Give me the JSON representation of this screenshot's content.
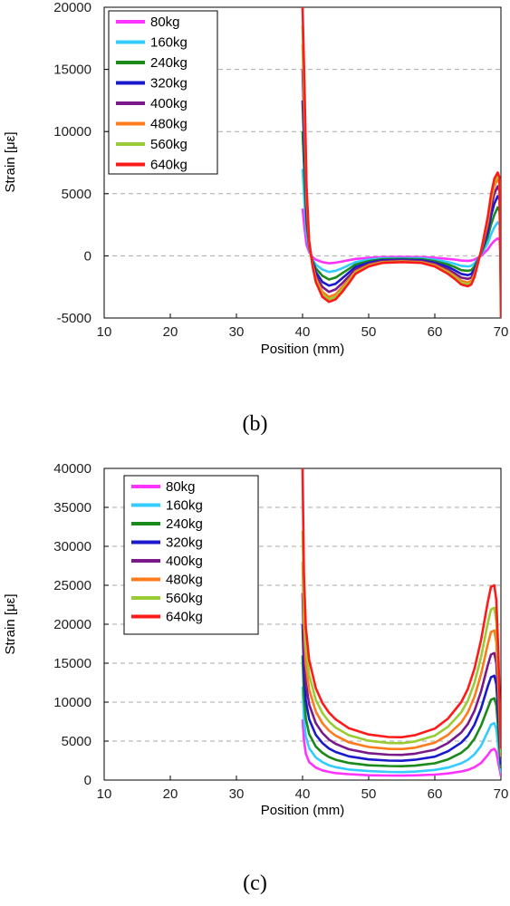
{
  "captions": {
    "b": "(b)",
    "c": "(c)"
  },
  "colors": {
    "80kg": "#ff33ff",
    "160kg": "#33ccff",
    "240kg": "#1a8a1a",
    "320kg": "#1a1acc",
    "400kg": "#7a1a8a",
    "480kg": "#ff7a1a",
    "560kg": "#99cc33",
    "640kg": "#ff1a1a"
  },
  "chart_data": [
    {
      "type": "line",
      "panel": "(b)",
      "xlabel": "Position (mm)",
      "ylabel": "Strain [με]",
      "xlim": [
        10,
        70
      ],
      "ylim": [
        -5000,
        20000
      ],
      "xticks": [
        "10",
        "20",
        "30",
        "40",
        "50",
        "60",
        "70"
      ],
      "yticks": [
        "-5000",
        "0",
        "5000",
        "10000",
        "15000",
        "20000"
      ],
      "grid": "horizontal dashed",
      "legend_position": "top-left",
      "x": [
        40,
        40.3,
        40.6,
        41,
        41.5,
        42,
        43,
        44,
        45,
        46,
        47,
        48,
        50,
        52,
        55,
        58,
        60,
        62,
        63,
        64,
        65,
        65.5,
        66,
        67,
        68,
        68.5,
        69,
        69.5,
        69.8,
        70
      ],
      "series": [
        {
          "name": "80kg",
          "values": [
            3800,
            2200,
            900,
            300,
            -100,
            -300,
            -500,
            -600,
            -550,
            -450,
            -350,
            -250,
            -150,
            -100,
            -80,
            -100,
            -150,
            -250,
            -300,
            -380,
            -400,
            -380,
            -300,
            0,
            500,
            900,
            1200,
            1400,
            1300,
            -400
          ]
        },
        {
          "name": "160kg",
          "values": [
            7000,
            4200,
            1800,
            500,
            -300,
            -700,
            -1100,
            -1300,
            -1200,
            -1000,
            -750,
            -500,
            -300,
            -200,
            -180,
            -200,
            -300,
            -500,
            -650,
            -800,
            -850,
            -800,
            -600,
            100,
            1000,
            1700,
            2300,
            2700,
            2500,
            -900
          ]
        },
        {
          "name": "240kg",
          "values": [
            10000,
            6200,
            2600,
            700,
            -400,
            -1000,
            -1600,
            -1900,
            -1750,
            -1400,
            -1050,
            -700,
            -420,
            -280,
            -250,
            -280,
            -420,
            -700,
            -900,
            -1150,
            -1200,
            -1150,
            -850,
            200,
            1500,
            2500,
            3300,
            3900,
            3600,
            -1500
          ]
        },
        {
          "name": "320kg",
          "values": [
            12500,
            8000,
            3300,
            800,
            -500,
            -1300,
            -2100,
            -2400,
            -2250,
            -1800,
            -1350,
            -900,
            -550,
            -360,
            -320,
            -360,
            -550,
            -900,
            -1150,
            -1450,
            -1550,
            -1450,
            -1100,
            250,
            1900,
            3200,
            4200,
            4800,
            4500,
            -2200
          ]
        },
        {
          "name": "400kg",
          "values": [
            15000,
            9500,
            4000,
            900,
            -600,
            -1600,
            -2500,
            -2900,
            -2700,
            -2200,
            -1650,
            -1100,
            -650,
            -430,
            -380,
            -430,
            -650,
            -1100,
            -1400,
            -1750,
            -1850,
            -1750,
            -1300,
            300,
            2300,
            3800,
            5000,
            5600,
            5200,
            -2800
          ]
        },
        {
          "name": "480kg",
          "values": [
            17000,
            11000,
            4600,
            1000,
            -700,
            -1800,
            -2900,
            -3300,
            -3100,
            -2500,
            -1900,
            -1250,
            -750,
            -500,
            -440,
            -500,
            -750,
            -1250,
            -1600,
            -2000,
            -2150,
            -2000,
            -1500,
            350,
            2700,
            4300,
            5600,
            6200,
            5800,
            -3500
          ]
        },
        {
          "name": "560kg",
          "values": [
            18500,
            12200,
            5100,
            1100,
            -750,
            -1950,
            -3100,
            -3500,
            -3300,
            -2700,
            -2050,
            -1350,
            -800,
            -540,
            -470,
            -540,
            -800,
            -1350,
            -1700,
            -2150,
            -2300,
            -2150,
            -1600,
            380,
            2900,
            4600,
            5900,
            6500,
            6100,
            -4200
          ]
        },
        {
          "name": "640kg",
          "values": [
            20000,
            13500,
            5600,
            1200,
            -800,
            -2100,
            -3300,
            -3700,
            -3500,
            -2900,
            -2200,
            -1450,
            -850,
            -570,
            -500,
            -570,
            -850,
            -1450,
            -1850,
            -2300,
            -2450,
            -2300,
            -1700,
            400,
            3100,
            4900,
            6200,
            6700,
            6300,
            -5000
          ]
        }
      ]
    },
    {
      "type": "line",
      "panel": "(c)",
      "xlabel": "Position (mm)",
      "ylabel": "Strain [με]",
      "xlim": [
        10,
        70
      ],
      "ylim": [
        0,
        40000
      ],
      "xticks": [
        "10",
        "20",
        "30",
        "40",
        "50",
        "60",
        "70"
      ],
      "yticks": [
        "0",
        "5000",
        "10000",
        "15000",
        "20000",
        "25000",
        "30000",
        "35000",
        "40000"
      ],
      "grid": "horizontal dashed",
      "legend_position": "top-left",
      "x": [
        40,
        40.2,
        40.5,
        41,
        42,
        43,
        44,
        45,
        47,
        50,
        53,
        55,
        57,
        60,
        62,
        64,
        65,
        66,
        67,
        68,
        68.5,
        69,
        69.3,
        69.6,
        70
      ],
      "series": [
        {
          "name": "80kg",
          "values": [
            7800,
            5200,
            3400,
            2300,
            1600,
            1250,
            1050,
            900,
            750,
            620,
            580,
            570,
            600,
            700,
            850,
            1100,
            1300,
            1650,
            2200,
            3200,
            3800,
            4000,
            3600,
            2200,
            500
          ]
        },
        {
          "name": "160kg",
          "values": [
            12000,
            8000,
            5600,
            4100,
            2900,
            2300,
            1900,
            1650,
            1350,
            1150,
            1050,
            1020,
            1080,
            1300,
            1600,
            2150,
            2600,
            3300,
            4400,
            6200,
            7100,
            7300,
            6600,
            4200,
            900
          ]
        },
        {
          "name": "240kg",
          "values": [
            16000,
            11000,
            7900,
            5900,
            4300,
            3500,
            2950,
            2600,
            2200,
            1900,
            1800,
            1780,
            1850,
            2150,
            2650,
            3500,
            4200,
            5300,
            7000,
            9200,
            10300,
            10500,
            9600,
            6400,
            1500
          ]
        },
        {
          "name": "320kg",
          "values": [
            20000,
            14000,
            10200,
            7800,
            5800,
            4750,
            4050,
            3600,
            3050,
            2650,
            2500,
            2480,
            2600,
            3000,
            3700,
            4800,
            5700,
            7100,
            9200,
            12000,
            13200,
            13400,
            12300,
            8400,
            2000
          ]
        },
        {
          "name": "400kg",
          "values": [
            24000,
            17000,
            12500,
            9700,
            7300,
            6050,
            5200,
            4650,
            3950,
            3450,
            3250,
            3230,
            3380,
            3900,
            4750,
            6100,
            7200,
            8900,
            11400,
            14700,
            16100,
            16300,
            15000,
            10400,
            2500
          ]
        },
        {
          "name": "480kg",
          "values": [
            28000,
            20000,
            14900,
            11600,
            8800,
            7300,
            6350,
            5700,
            4850,
            4250,
            4000,
            3980,
            4150,
            4800,
            5800,
            7400,
            8700,
            10700,
            13600,
            17400,
            19000,
            19200,
            17700,
            12400,
            3000
          ]
        },
        {
          "name": "560kg",
          "values": [
            32000,
            23000,
            17200,
            13500,
            10300,
            8600,
            7500,
            6750,
            5750,
            5050,
            4750,
            4730,
            4950,
            5700,
            6850,
            8700,
            10200,
            12500,
            15800,
            20100,
            21900,
            22100,
            20400,
            14400,
            3500
          ]
        },
        {
          "name": "640kg",
          "values": [
            40000,
            26500,
            19600,
            15400,
            11800,
            9900,
            8650,
            7800,
            6650,
            5850,
            5520,
            5500,
            5750,
            6600,
            7900,
            10000,
            11700,
            14300,
            18000,
            22800,
            24800,
            25000,
            23100,
            16400,
            4000
          ]
        }
      ]
    }
  ]
}
